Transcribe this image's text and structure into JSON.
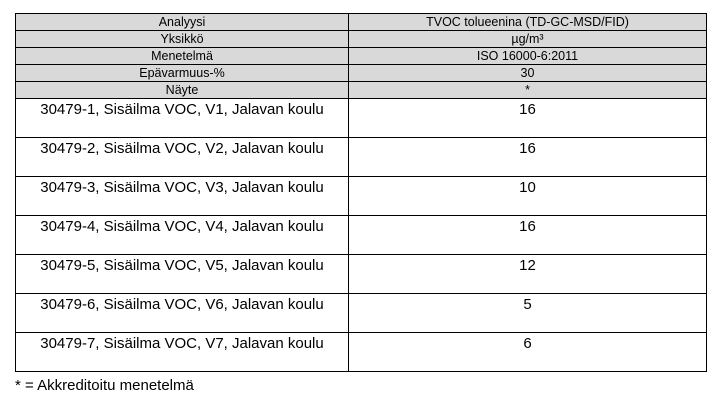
{
  "table": {
    "header_rows": [
      {
        "label": "Analyysi",
        "value": "TVOC tolueenina (TD-GC-MSD/FID)"
      },
      {
        "label": "Yksikkö",
        "value": "µg/m³"
      },
      {
        "label": "Menetelmä",
        "value": "ISO 16000-6:2011"
      },
      {
        "label": "Epävarmuus-%",
        "value": "30"
      },
      {
        "label": "Näyte",
        "value": "*"
      }
    ],
    "samples": [
      {
        "label": "30479-1, Sisäilma VOC, V1, Jalavan koulu",
        "value": "16"
      },
      {
        "label": "30479-2, Sisäilma VOC, V2, Jalavan koulu",
        "value": "16"
      },
      {
        "label": "30479-3, Sisäilma VOC, V3, Jalavan koulu",
        "value": "10"
      },
      {
        "label": "30479-4, Sisäilma VOC, V4, Jalavan koulu",
        "value": "16"
      },
      {
        "label": "30479-5, Sisäilma VOC, V5, Jalavan koulu",
        "value": "12"
      },
      {
        "label": "30479-6, Sisäilma VOC, V6, Jalavan koulu",
        "value": "5"
      },
      {
        "label": "30479-7, Sisäilma VOC, V7, Jalavan koulu",
        "value": "6"
      }
    ]
  },
  "footnote": "* = Akkreditoitu menetelmä",
  "colors": {
    "header_background": "#d9d9d9",
    "border": "#000000"
  }
}
